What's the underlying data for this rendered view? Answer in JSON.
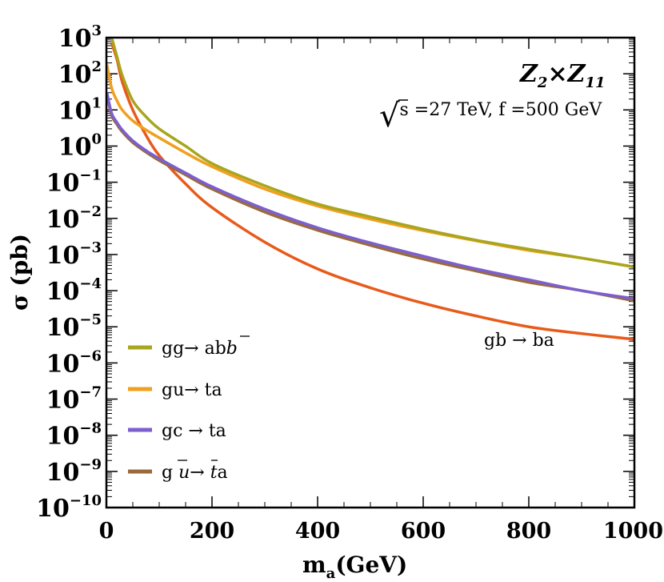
{
  "chart_data": {
    "type": "line",
    "title": "",
    "title_parts": {
      "base1": "Z",
      "sub1": "2",
      "times": "×",
      "base2": "Z",
      "sub2": "11"
    },
    "annotation_parts": {
      "sqrt": "√",
      "rest": "s =27 TeV, f =500 GeV"
    },
    "xlabel_parts": {
      "base": "m",
      "sub": "a",
      "rest": "(GeV)"
    },
    "ylabel": "σ (pb)",
    "xlim": [
      0,
      1000
    ],
    "ylim_exponent": [
      -10,
      3
    ],
    "yscale": "log",
    "x_ticks": [
      "0",
      "200",
      "400",
      "600",
      "800",
      "1000"
    ],
    "y_ticks": [
      {
        "exp": "3",
        "label": "3"
      },
      {
        "exp": "2",
        "label": "2"
      },
      {
        "exp": "1",
        "label": "1"
      },
      {
        "exp": "0",
        "label": "0"
      },
      {
        "exp": "-1",
        "label": "−1"
      },
      {
        "exp": "-2",
        "label": "−2"
      },
      {
        "exp": "-3",
        "label": "−3"
      },
      {
        "exp": "-4",
        "label": "−4"
      },
      {
        "exp": "-5",
        "label": "−5"
      },
      {
        "exp": "-6",
        "label": "−6"
      },
      {
        "exp": "-7",
        "label": "−7"
      },
      {
        "exp": "-8",
        "label": "−8"
      },
      {
        "exp": "-9",
        "label": "−9"
      },
      {
        "exp": "-10",
        "label": "−10"
      }
    ],
    "y_tick_base": "10",
    "series": [
      {
        "name": "gg→ ab b̄",
        "legend_parts": {
          "a": "gg→ ab",
          "b": "b"
        },
        "color": "#a8a51e",
        "x": [
          10,
          20,
          30,
          50,
          75,
          100,
          150,
          200,
          300,
          400,
          500,
          600,
          700,
          800,
          900,
          1000
        ],
        "y": [
          1000,
          300,
          90,
          18,
          6.5,
          3.0,
          1.0,
          0.33,
          0.08,
          0.025,
          0.011,
          0.005,
          0.0025,
          0.0014,
          0.0008,
          0.00045
        ]
      },
      {
        "name": "gu→ ta",
        "legend_parts": {
          "a": "gu→ ta"
        },
        "color": "#f0a020",
        "x": [
          1,
          10,
          20,
          30,
          50,
          75,
          100,
          150,
          200,
          300,
          400,
          500,
          600,
          700,
          800,
          900,
          1000
        ],
        "y": [
          180,
          40,
          18,
          10,
          5,
          2.8,
          1.7,
          0.65,
          0.27,
          0.065,
          0.022,
          0.0095,
          0.0046,
          0.0024,
          0.0013,
          0.0008,
          0.00045
        ]
      },
      {
        "name": "gc → ta",
        "legend_parts": {
          "a": "gc → ta"
        },
        "color": "#7b5fcf",
        "x": [
          1,
          10,
          20,
          30,
          50,
          75,
          100,
          150,
          200,
          300,
          400,
          500,
          600,
          700,
          800,
          900,
          1000
        ],
        "y": [
          30,
          8,
          4.5,
          2.8,
          1.4,
          0.75,
          0.45,
          0.18,
          0.075,
          0.018,
          0.0055,
          0.0021,
          0.0009,
          0.0004,
          0.0002,
          0.0001,
          6e-05
        ]
      },
      {
        "name": "g ū→ t̄a",
        "legend_parts": {
          "a": "g ",
          "u": "u",
          "arrow": "→ ",
          "t": "t",
          "rest": "a"
        },
        "color": "#9a6a3a",
        "x": [
          1,
          10,
          20,
          30,
          50,
          75,
          100,
          150,
          200,
          300,
          400,
          500,
          600,
          700,
          800,
          900,
          1000
        ],
        "y": [
          25,
          7,
          4,
          2.5,
          1.25,
          0.68,
          0.4,
          0.16,
          0.065,
          0.015,
          0.0047,
          0.0018,
          0.00075,
          0.00035,
          0.00017,
          0.0001,
          5.2e-05
        ]
      },
      {
        "name": "gb → ba",
        "color": "#e85a1a",
        "x": [
          10,
          20,
          30,
          50,
          75,
          100,
          150,
          200,
          300,
          400,
          500,
          600,
          700,
          800,
          900,
          1000
        ],
        "y": [
          700,
          250,
          60,
          10,
          2.0,
          0.55,
          0.09,
          0.02,
          0.0022,
          0.0004,
          0.00012,
          4.5e-05,
          2e-05,
          1e-05,
          6.5e-06,
          4.5e-06
        ]
      }
    ],
    "inline_label": {
      "text": "gb → ba",
      "color": "#e8221a"
    }
  }
}
